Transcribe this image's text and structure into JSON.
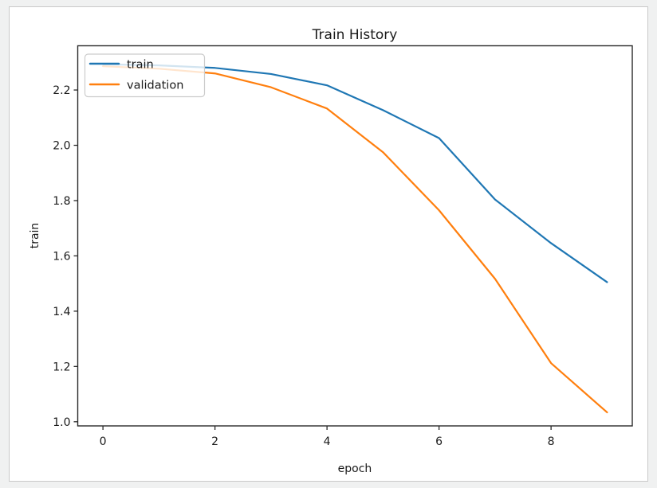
{
  "page": {
    "background_color": "#f0f1f1",
    "figure_background": "#ffffff",
    "figure_border_color": "#c9c9c9"
  },
  "chart_data": {
    "type": "line",
    "title": "Train History",
    "xlabel": "epoch",
    "ylabel": "train",
    "x": [
      0,
      1,
      2,
      3,
      4,
      5,
      6,
      7,
      8,
      9
    ],
    "series": [
      {
        "name": "train",
        "color": "#1f77b4",
        "values": [
          2.293,
          2.289,
          2.28,
          2.258,
          2.217,
          2.127,
          2.026,
          1.804,
          1.646,
          1.505
        ]
      },
      {
        "name": "validation",
        "color": "#ff7f0e",
        "values": [
          2.286,
          2.277,
          2.26,
          2.21,
          2.133,
          1.975,
          1.765,
          1.517,
          1.212,
          1.034
        ]
      }
    ],
    "xlim": [
      -0.45,
      9.45
    ],
    "ylim": [
      0.985,
      2.36
    ],
    "xticks": [
      0,
      2,
      4,
      6,
      8
    ],
    "yticks": [
      1.0,
      1.2,
      1.4,
      1.6,
      1.8,
      2.0,
      2.2
    ],
    "grid": false,
    "legend": {
      "position": "upper left",
      "entries": [
        "train",
        "validation"
      ]
    },
    "text_color": "#1a1a1a",
    "spine_color": "#2b2b2b",
    "line_width": 2.2
  }
}
